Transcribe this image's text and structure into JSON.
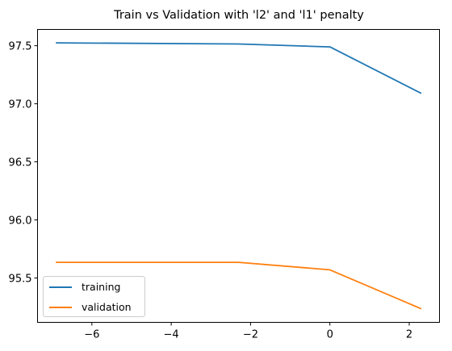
{
  "chart_data": {
    "type": "line",
    "title": "Train vs Validation with 'l2' and 'l1' penalty",
    "xlabel": "",
    "ylabel": "",
    "x": [
      -6.908,
      -2.303,
      0,
      2.303
    ],
    "xlim": [
      -7.37,
      2.763
    ],
    "ylim": [
      95.118,
      97.64
    ],
    "xticks": [
      -6,
      -4,
      -2,
      0,
      2
    ],
    "xtick_labels": [
      "−6",
      "−4",
      "−2",
      "0",
      "2"
    ],
    "yticks": [
      95.5,
      96.0,
      96.5,
      97.0,
      97.5
    ],
    "ytick_labels": [
      "95.5",
      "96.0",
      "96.5",
      "97.0",
      "97.5"
    ],
    "grid": false,
    "legend_position": "lower-left",
    "series": [
      {
        "name": "training",
        "color": "#1f77b4",
        "values": [
          97.525,
          97.515,
          97.49,
          97.09
        ]
      },
      {
        "name": "validation",
        "color": "#ff7f0e",
        "values": [
          95.635,
          95.635,
          95.57,
          95.235
        ]
      }
    ]
  }
}
